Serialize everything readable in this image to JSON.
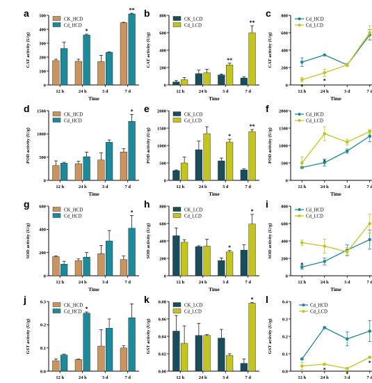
{
  "colors": {
    "CK_HCD": "#c9945e",
    "Cd_HCD": "#1d8a9c",
    "CK_LCD": "#1a4d5a",
    "Cd_LCD": "#c3c51e"
  },
  "chart_data": [
    {
      "letter": "a",
      "type": "bar",
      "ylabel": "CAT activity  (U/g)",
      "xlabel": "Time",
      "categories": [
        "12 h",
        "24 h",
        "3 d",
        "7 d"
      ],
      "ylim": [
        0,
        500
      ],
      "yticks": [
        0,
        100,
        200,
        300,
        400,
        500
      ],
      "series": [
        {
          "name": "CK_HCD",
          "color": "CK_HCD",
          "values": [
            175,
            170,
            168,
            447
          ],
          "errors": [
            10,
            15,
            45,
            3
          ],
          "sig": [
            "",
            "",
            "",
            ""
          ]
        },
        {
          "name": "Cd_HCD",
          "color": "Cd_HCD",
          "values": [
            262,
            358,
            234,
            510
          ],
          "errors": [
            45,
            7,
            3,
            5
          ],
          "sig": [
            "",
            "*",
            "",
            "**"
          ]
        }
      ],
      "legend": "top-left"
    },
    {
      "letter": "b",
      "type": "bar",
      "ylabel": "CAT activity  (U/g)",
      "xlabel": "Time",
      "categories": [
        "12 h",
        "24 h",
        "3 d",
        "7 d"
      ],
      "ylim": [
        0,
        800
      ],
      "yticks": [
        0,
        200,
        400,
        600,
        800
      ],
      "series": [
        {
          "name": "CK_LCD",
          "color": "CK_LCD",
          "values": [
            35,
            130,
            115,
            80
          ],
          "errors": [
            15,
            40,
            10,
            15
          ],
          "sig": [
            "",
            "",
            "",
            ""
          ]
        },
        {
          "name": "Cd_LCD",
          "color": "Cd_LCD",
          "values": [
            60,
            140,
            230,
            600
          ],
          "errors": [
            25,
            40,
            20,
            80
          ],
          "sig": [
            "",
            "",
            "**",
            "**"
          ]
        }
      ],
      "legend": "top-left"
    },
    {
      "letter": "c",
      "type": "line",
      "ylabel": "CAT activity  (U/g)",
      "xlabel": "Time",
      "categories": [
        "12 h",
        "24 h",
        "3 d",
        "7 d"
      ],
      "ylim": [
        0,
        800
      ],
      "yticks": [
        0,
        200,
        400,
        600,
        800
      ],
      "series": [
        {
          "name": "Cd_HCD",
          "color": "Cd_HCD",
          "values": [
            262,
            345,
            230,
            575
          ],
          "errors": [
            50,
            0,
            0,
            60
          ],
          "sig": [
            "",
            "",
            "",
            ""
          ]
        },
        {
          "name": "Cd_LCD",
          "color": "Cd_LCD",
          "values": [
            60,
            140,
            230,
            600
          ],
          "errors": [
            25,
            40,
            20,
            80
          ],
          "sig": [
            "*",
            "*",
            "",
            ""
          ]
        }
      ],
      "legend": "top-left"
    },
    {
      "letter": "d",
      "type": "bar",
      "ylabel": "POD activity  (U/g)",
      "xlabel": "Time",
      "categories": [
        "12 h",
        "24 h",
        "3 d",
        "7 d"
      ],
      "ylim": [
        0,
        1500
      ],
      "yticks": [
        0,
        500,
        1000,
        1500
      ],
      "series": [
        {
          "name": "CK_HCD",
          "color": "CK_HCD",
          "values": [
            320,
            360,
            440,
            610
          ],
          "errors": [
            100,
            50,
            150,
            70
          ],
          "sig": [
            "",
            "",
            "",
            ""
          ]
        },
        {
          "name": "Cd_HCD",
          "color": "Cd_HCD",
          "values": [
            370,
            510,
            820,
            1270
          ],
          "errors": [
            20,
            100,
            50,
            150
          ],
          "sig": [
            "",
            "",
            "",
            "*"
          ]
        }
      ],
      "legend": "top-left"
    },
    {
      "letter": "e",
      "type": "bar",
      "ylabel": "POD activity  (U/g)",
      "xlabel": "Time",
      "categories": [
        "12 h",
        "24 h",
        "3 d",
        "7 d"
      ],
      "ylim": [
        0,
        2000
      ],
      "yticks": [
        0,
        500,
        1000,
        1500,
        2000
      ],
      "series": [
        {
          "name": "CK_LCD",
          "color": "CK_LCD",
          "values": [
            280,
            880,
            560,
            300
          ],
          "errors": [
            20,
            250,
            80,
            30
          ],
          "sig": [
            "",
            "",
            "",
            ""
          ]
        },
        {
          "name": "Cd_LCD",
          "color": "Cd_LCD",
          "values": [
            500,
            1340,
            1100,
            1400
          ],
          "errors": [
            170,
            200,
            80,
            60
          ],
          "sig": [
            "",
            "",
            "*",
            "**"
          ]
        }
      ],
      "legend": "top-left"
    },
    {
      "letter": "f",
      "type": "line",
      "ylabel": "POD activity  (U/g)",
      "xlabel": "Time",
      "categories": [
        "12 h",
        "24 h",
        "3 d",
        "7 d"
      ],
      "ylim": [
        0,
        2000
      ],
      "yticks": [
        0,
        500,
        1000,
        1500,
        2000
      ],
      "series": [
        {
          "name": "Cd_HCD",
          "color": "Cd_HCD",
          "values": [
            370,
            510,
            840,
            1270
          ],
          "errors": [
            20,
            100,
            60,
            160
          ],
          "sig": [
            "",
            "*",
            "",
            ""
          ]
        },
        {
          "name": "Cd_LCD",
          "color": "Cd_LCD",
          "values": [
            500,
            1340,
            1100,
            1400
          ],
          "errors": [
            170,
            200,
            80,
            60
          ],
          "sig": [
            "",
            "",
            "",
            ""
          ]
        }
      ],
      "legend": "top-left"
    },
    {
      "letter": "g",
      "type": "bar",
      "ylabel": "SOD activity  (U/g)",
      "xlabel": "Time",
      "categories": [
        "12 h",
        "24 h",
        "3 d",
        "7 d"
      ],
      "ylim": [
        0,
        600
      ],
      "yticks": [
        0,
        200,
        400,
        600
      ],
      "series": [
        {
          "name": "CK_HCD",
          "color": "CK_HCD",
          "values": [
            165,
            130,
            190,
            140
          ],
          "errors": [
            5,
            15,
            70,
            30
          ],
          "sig": [
            "",
            "",
            "",
            ""
          ]
        },
        {
          "name": "Cd_HCD",
          "color": "Cd_HCD",
          "values": [
            100,
            160,
            300,
            410
          ],
          "errors": [
            25,
            40,
            90,
            110
          ],
          "sig": [
            "",
            "",
            "",
            "*"
          ]
        }
      ],
      "legend": "top-left"
    },
    {
      "letter": "h",
      "type": "bar",
      "ylabel": "SOD activity  (U/g)",
      "xlabel": "Time",
      "categories": [
        "12 h",
        "24 h",
        "3 d",
        "7 d"
      ],
      "ylim": [
        0,
        800
      ],
      "yticks": [
        0,
        200,
        400,
        600,
        800
      ],
      "series": [
        {
          "name": "CK_LCD",
          "color": "CK_LCD",
          "values": [
            460,
            335,
            175,
            295
          ],
          "errors": [
            90,
            10,
            30,
            60
          ],
          "sig": [
            "",
            "",
            "",
            ""
          ]
        },
        {
          "name": "Cd_LCD",
          "color": "Cd_LCD",
          "values": [
            385,
            340,
            275,
            595
          ],
          "errors": [
            30,
            80,
            15,
            110
          ],
          "sig": [
            "",
            "",
            "*",
            "*"
          ]
        }
      ],
      "legend": "top-left"
    },
    {
      "letter": "i",
      "type": "line",
      "ylabel": "SOD activity  (U/g)",
      "xlabel": "Time",
      "categories": [
        "12 h",
        "24 h",
        "3 d",
        "7 d"
      ],
      "ylim": [
        0,
        800
      ],
      "yticks": [
        0,
        200,
        400,
        600,
        800
      ],
      "series": [
        {
          "name": "Cd_HCD",
          "color": "Cd_HCD",
          "values": [
            100,
            165,
            295,
            415
          ],
          "errors": [
            25,
            40,
            60,
            110
          ],
          "sig": [
            "*",
            "",
            "",
            ""
          ]
        },
        {
          "name": "Cd_LCD",
          "color": "Cd_LCD",
          "values": [
            380,
            340,
            275,
            600
          ],
          "errors": [
            30,
            80,
            50,
            110
          ],
          "sig": [
            "",
            "",
            "",
            ""
          ]
        }
      ],
      "legend": "top-left"
    },
    {
      "letter": "j",
      "type": "bar",
      "ylabel": "GST activity  (U/g)",
      "xlabel": "Time",
      "categories": [
        "12 h",
        "24 h",
        "3 d",
        "7 d"
      ],
      "ylim": [
        0,
        0.3
      ],
      "yticks": [
        0.0,
        0.1,
        0.2,
        0.3
      ],
      "series": [
        {
          "name": "CK_HCD",
          "color": "CK_HCD",
          "values": [
            0.045,
            0.05,
            0.108,
            0.1
          ],
          "errors": [
            0.008,
            0.002,
            0.07,
            0.01
          ],
          "sig": [
            "",
            "",
            "",
            ""
          ]
        },
        {
          "name": "Cd_HCD",
          "color": "Cd_HCD",
          "values": [
            0.07,
            0.25,
            0.185,
            0.23
          ],
          "errors": [
            0.003,
            0.005,
            0.04,
            0.06
          ],
          "sig": [
            "",
            "*",
            "",
            ""
          ]
        }
      ],
      "legend": "top-left"
    },
    {
      "letter": "k",
      "type": "bar",
      "ylabel": "GST activity  (U/g)",
      "xlabel": "Time",
      "categories": [
        "12 h",
        "24 h",
        "3 d",
        "7 d"
      ],
      "ylim": [
        0,
        0.08
      ],
      "yticks": [
        0.0,
        0.02,
        0.04,
        0.06,
        0.08
      ],
      "series": [
        {
          "name": "CK_LCD",
          "color": "CK_LCD",
          "values": [
            0.046,
            0.041,
            0.038,
            0.009
          ],
          "errors": [
            0.018,
            0.014,
            0.01,
            0.005
          ],
          "sig": [
            "",
            "",
            "",
            ""
          ]
        },
        {
          "name": "Cd_LCD",
          "color": "Cd_LCD",
          "values": [
            0.032,
            0.041,
            0.018,
            0.078
          ],
          "errors": [
            0.02,
            0.001,
            0.002,
            0.001
          ],
          "sig": [
            "",
            "",
            "",
            "*"
          ]
        }
      ],
      "legend": "top-left"
    },
    {
      "letter": "l",
      "type": "line",
      "ylabel": "GST activity  (U/g)",
      "xlabel": "Time",
      "categories": [
        "12 h",
        "24 h",
        "3 d",
        "7 d"
      ],
      "ylim": [
        0,
        0.4
      ],
      "yticks": [
        0.0,
        0.1,
        0.2,
        0.3,
        0.4
      ],
      "series": [
        {
          "name": "Cd_HCD",
          "color": "Cd_HCD",
          "values": [
            0.07,
            0.25,
            0.185,
            0.23
          ],
          "errors": [
            0.005,
            0.005,
            0.04,
            0.06
          ],
          "sig": [
            "",
            "",
            "",
            ""
          ]
        },
        {
          "name": "Cd_LCD",
          "color": "Cd_LCD",
          "values": [
            0.03,
            0.04,
            0.015,
            0.08
          ],
          "errors": [
            0.02,
            0.005,
            0.005,
            0.005
          ],
          "sig": [
            "",
            "*",
            "*",
            "*"
          ]
        }
      ],
      "legend": "top-right"
    }
  ]
}
